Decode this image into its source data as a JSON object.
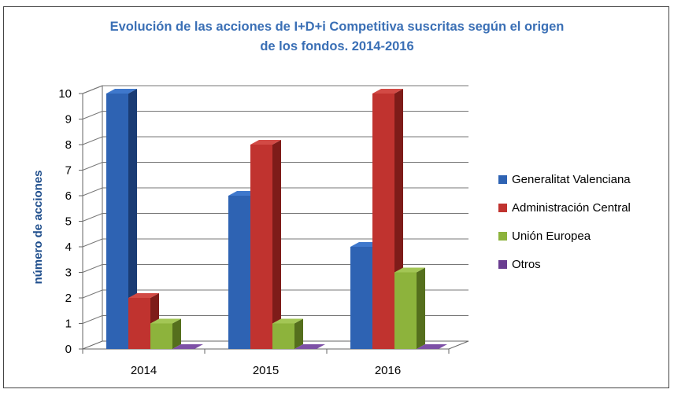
{
  "chart_data": {
    "type": "bar",
    "title_lines": [
      "Evolución de las acciones de I+D+i Competitiva suscritas según el origen",
      "de los fondos. 2014-2016"
    ],
    "ylabel": "número de acciones",
    "xlabel": "",
    "categories": [
      "2014",
      "2015",
      "2016"
    ],
    "ylim": [
      0,
      10
    ],
    "yticks": [
      0,
      1,
      2,
      3,
      4,
      5,
      6,
      7,
      8,
      9,
      10
    ],
    "grid": true,
    "three_d": true,
    "legend_position": "right",
    "series": [
      {
        "name": "Generalitat Valenciana",
        "values": [
          10,
          6,
          4
        ],
        "color": "#2e63b3",
        "side": "#1a3c74",
        "top": "#3f78cc"
      },
      {
        "name": "Administración Central",
        "values": [
          2,
          8,
          10
        ],
        "color": "#c0332f",
        "side": "#7e1c19",
        "top": "#d24a45"
      },
      {
        "name": "Unión Europea",
        "values": [
          1,
          1,
          3
        ],
        "color": "#8db33c",
        "side": "#556f1d",
        "top": "#a3c655"
      },
      {
        "name": "Otros",
        "values": [
          0,
          0,
          0
        ],
        "color": "#6a3d91",
        "side": "#422461",
        "top": "#7d50a6"
      }
    ]
  }
}
